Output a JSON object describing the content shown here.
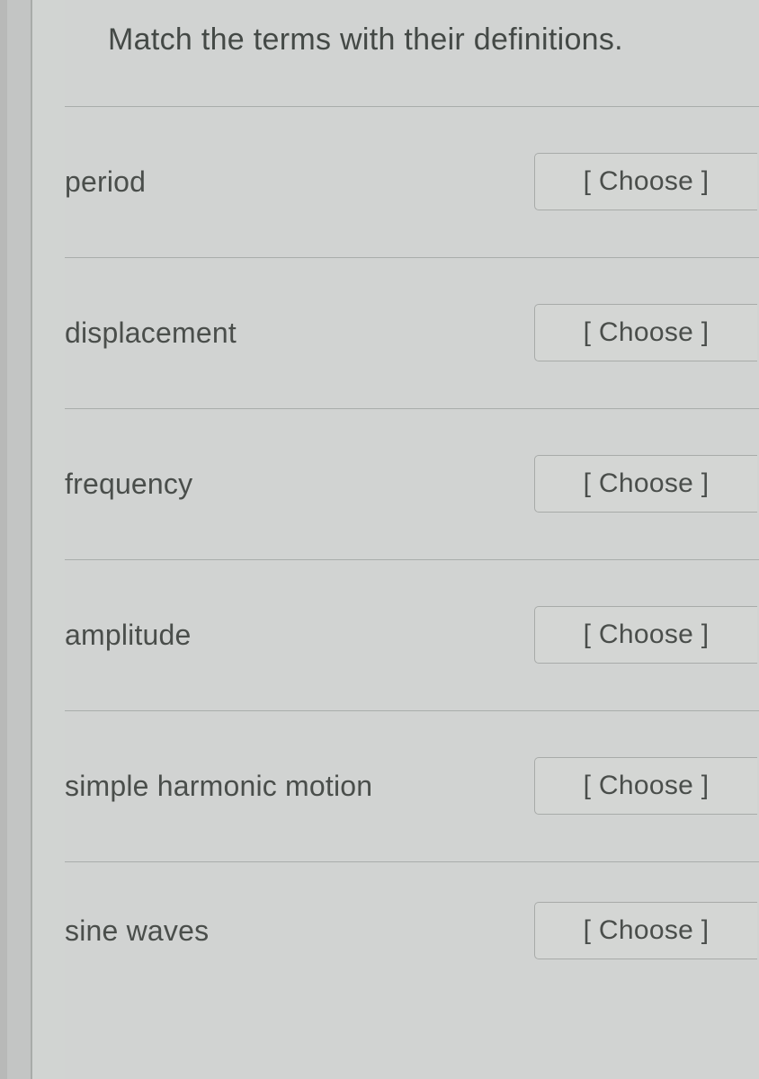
{
  "instruction": "Match the terms with their definitions.",
  "choose_label": "[ Choose ]",
  "terms": [
    {
      "label": "period"
    },
    {
      "label": "displacement"
    },
    {
      "label": "frequency"
    },
    {
      "label": "amplitude"
    },
    {
      "label": "simple harmonic motion"
    },
    {
      "label": "sine waves"
    }
  ],
  "styling": {
    "background_color": "#d1d3d2",
    "instruction_fontsize": 34,
    "instruction_color": "#444946",
    "term_fontsize": 32,
    "term_color": "#4a4e4b",
    "divider_color": "#a9adab",
    "button_border_color": "#a8aba9",
    "button_background": "#d4d6d4",
    "button_fontsize": 30,
    "button_text_color": "#4a4e4b",
    "left_rail_border_color": "#a8aba9"
  }
}
